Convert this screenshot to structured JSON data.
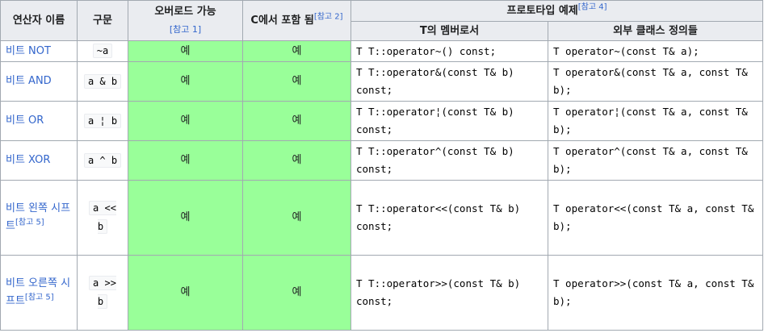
{
  "headers": {
    "name": "연산자 이름",
    "syntax": "구문",
    "overloadable": "오버로드 가능",
    "overloadable_ref": "[참고 1]",
    "in_c": "C에서 포함 됨",
    "in_c_ref": "[참고 2]",
    "prototype": "프로토타입 예제",
    "prototype_ref": "[참고 4]",
    "member": "T의 멤버로서",
    "external": "외부 클래스 정의들"
  },
  "rows": [
    {
      "name": "비트 NOT",
      "ref": "",
      "syntax": "~a",
      "overloadable": "예",
      "in_c": "예",
      "member": [
        "T T::operator~() const;"
      ],
      "external": [
        "T operator~(const T& a);"
      ]
    },
    {
      "name": "비트 AND",
      "ref": "",
      "syntax": "a & b",
      "overloadable": "예",
      "in_c": "예",
      "member": [
        "T T::operator&(const T& b)",
        "const;"
      ],
      "external": [
        "T operator&(const T& a, const T&",
        "b);"
      ]
    },
    {
      "name": "비트 OR",
      "ref": "",
      "syntax": "a ¦ b",
      "overloadable": "예",
      "in_c": "예",
      "member": [
        "T T::operator¦(const T& b)",
        "const;"
      ],
      "external": [
        "T operator¦(const T& a, const T&",
        "b);"
      ]
    },
    {
      "name": "비트 XOR",
      "ref": "",
      "syntax": "a ^ b",
      "overloadable": "예",
      "in_c": "예",
      "member": [
        "T T::operator^(const T& b)",
        "const;"
      ],
      "external": [
        "T operator^(const T& a, const T&",
        "b);"
      ]
    },
    {
      "name": "비트 왼쪽 시프트",
      "ref": "[참고 5]",
      "syntax": "a << b",
      "overloadable": "예",
      "in_c": "예",
      "member": [
        "T T::operator<<(const T& b)",
        "const;"
      ],
      "external": [
        "T operator<<(const T& a, const T&",
        "b);"
      ]
    },
    {
      "name": "비트 오른쪽 시프트",
      "ref": "[참고 5]",
      "syntax": "a >> b",
      "overloadable": "예",
      "in_c": "예",
      "member": [
        "T T::operator>>(const T& b)",
        "const;"
      ],
      "external": [
        "T operator>>(const T& a, const T&",
        "b);"
      ]
    }
  ],
  "colors": {
    "yes_bg": "#99ff99",
    "header_bg": "#eaecf0",
    "border": "#a2a9b1",
    "link": "#3366cc"
  }
}
